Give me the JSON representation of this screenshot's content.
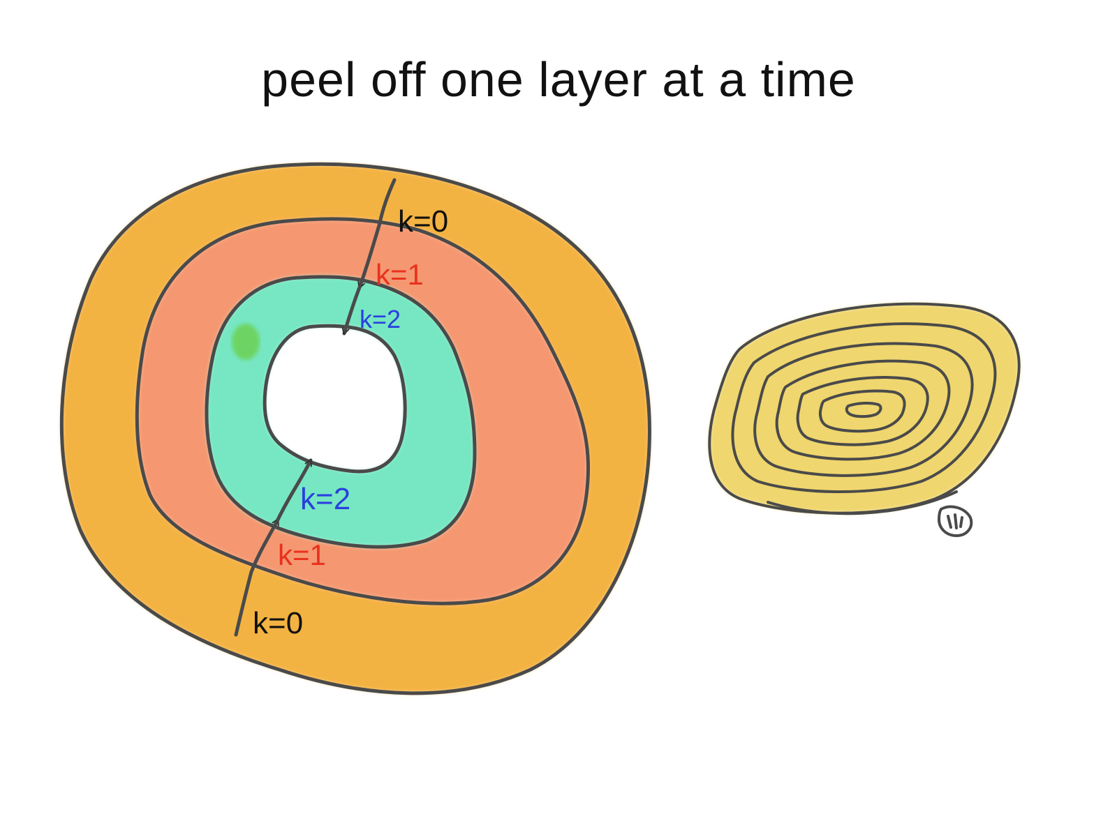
{
  "title": "peel off one layer at a time",
  "colors": {
    "outer_layer": "#f2a623",
    "middle_layer": "#f4875a",
    "inner_layer": "#5fe3b8",
    "inner_highlight": "#6ccf4c",
    "label_k0": "#111111",
    "label_k1": "#e8321e",
    "label_k2": "#2a3fe0",
    "onion_fill": "#e9c531",
    "stroke": "#4a4a4a"
  },
  "labels": {
    "top_k0": "k=0",
    "top_k1": "k=1",
    "top_k2": "k=2",
    "bottom_k2": "k=2",
    "bottom_k1": "k=1",
    "bottom_k0": "k=0"
  }
}
